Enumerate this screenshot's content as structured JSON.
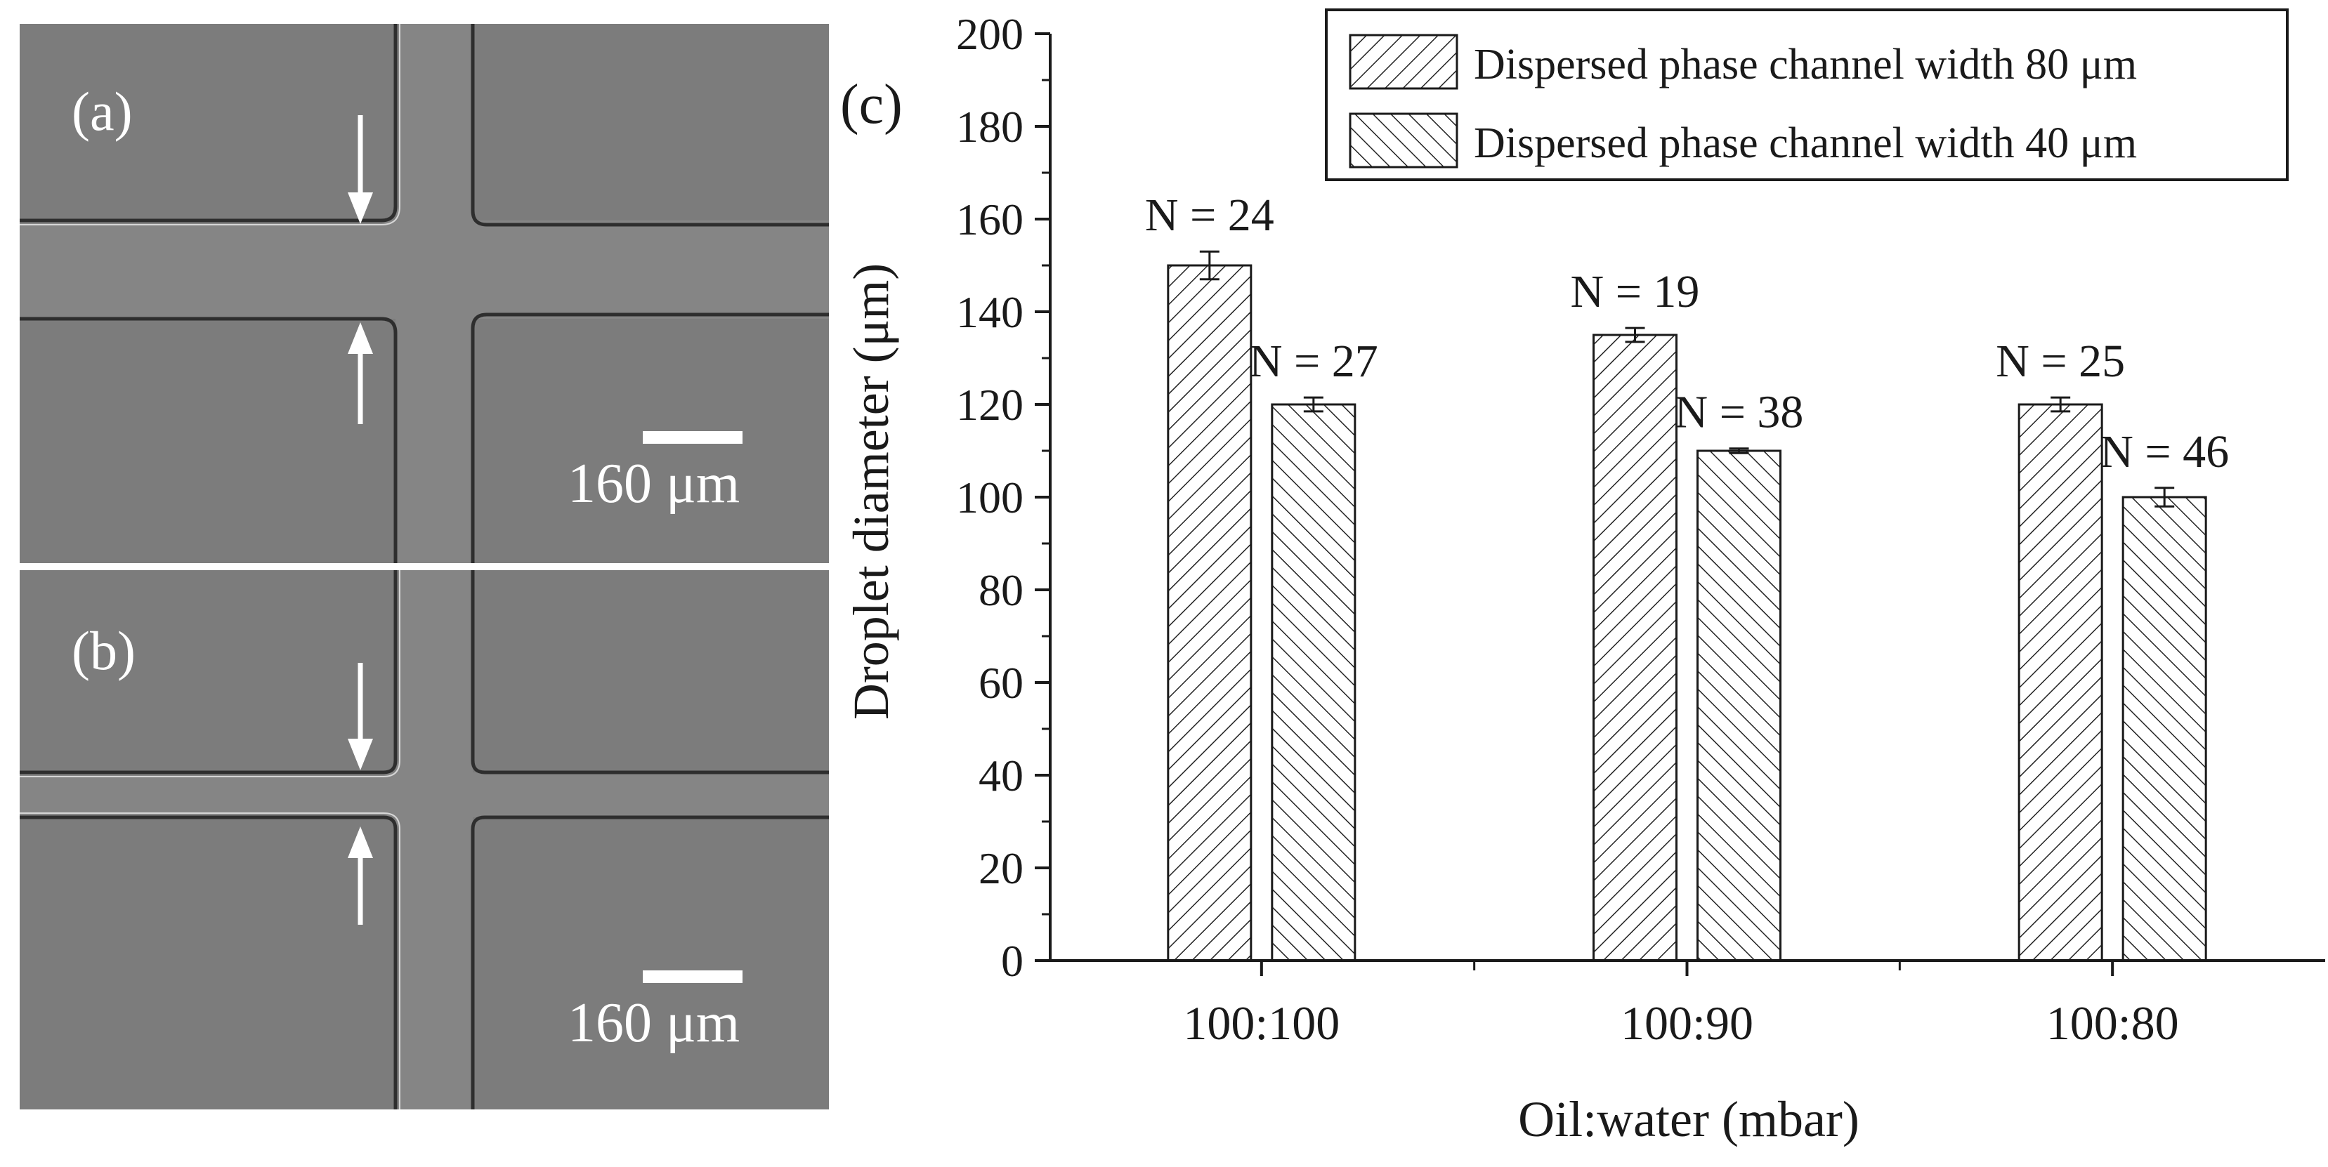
{
  "panels": [
    {
      "label": "(a)",
      "scale_bar": "160 μm"
    },
    {
      "label": "(b)",
      "scale_bar": "160 μm"
    }
  ],
  "chart_panel_label": "(c)",
  "colors": {
    "micrograph_bg": "#7c7c7c",
    "channel_fill": "#8a8a8a",
    "wall_dark": "#2e2e2e",
    "wall_light": "#d6d6d6"
  },
  "chart_data": {
    "type": "bar",
    "title": "",
    "xlabel": "Oil:water (mbar)",
    "ylabel": "Droplet diameter (μm)",
    "ylim": [
      0,
      200
    ],
    "yticks": [
      0,
      20,
      40,
      60,
      80,
      100,
      120,
      140,
      160,
      180,
      200
    ],
    "categories": [
      "100:100",
      "100:90",
      "100:80"
    ],
    "legend_position": "top-right",
    "series": [
      {
        "name": "Dispersed phase channel width 80 μm",
        "hatch": "forward-diagonal",
        "values": [
          150,
          135,
          120
        ],
        "errors": [
          3,
          1.5,
          1.5
        ],
        "annotations": [
          "N = 24",
          "N = 19",
          "N = 25"
        ]
      },
      {
        "name": "Dispersed phase channel width 40 μm",
        "hatch": "backward-diagonal",
        "values": [
          120,
          110,
          100
        ],
        "errors": [
          1.5,
          0.5,
          2
        ],
        "annotations": [
          "N = 27",
          "N = 38",
          "N = 46"
        ]
      }
    ]
  }
}
